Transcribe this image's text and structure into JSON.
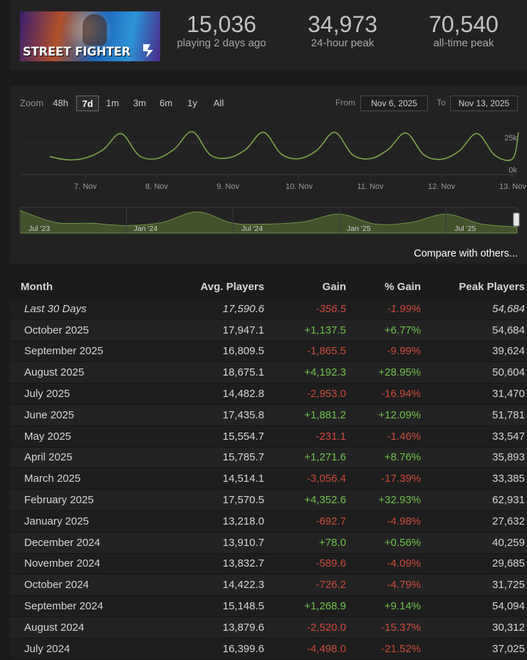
{
  "header": {
    "banner_logo": "STREET FIGHTER",
    "stats": [
      {
        "value": "15,036",
        "label": "playing 2 days ago"
      },
      {
        "value": "34,973",
        "label": "24-hour peak"
      },
      {
        "value": "70,540",
        "label": "all-time peak"
      }
    ]
  },
  "chart": {
    "zoom_label": "Zoom",
    "zoom_options": [
      "48h",
      "7d",
      "1m",
      "3m",
      "6m",
      "1y",
      "All"
    ],
    "active_zoom": "7d",
    "from_label": "From",
    "from_value": "Nov 6, 2025",
    "to_label": "To",
    "to_value": "Nov 13, 2025",
    "compare_label": "Compare with others..."
  },
  "chart_data": [
    {
      "type": "line",
      "x": [
        "6 Nov 12:00",
        "6 Nov 18:00",
        "7 Nov 00:00",
        "7 Nov 06:00",
        "7 Nov 12:00",
        "7 Nov 18:00",
        "8 Nov 00:00",
        "8 Nov 06:00",
        "8 Nov 12:00",
        "8 Nov 18:00",
        "9 Nov 00:00",
        "9 Nov 06:00",
        "9 Nov 12:00",
        "9 Nov 18:00",
        "10 Nov 00:00",
        "10 Nov 06:00",
        "10 Nov 12:00",
        "10 Nov 18:00",
        "11 Nov 00:00",
        "11 Nov 06:00",
        "11 Nov 12:00",
        "11 Nov 18:00",
        "12 Nov 00:00",
        "12 Nov 06:00",
        "12 Nov 12:00",
        "12 Nov 18:00",
        "13 Nov 00:00",
        "13 Nov 06:00"
      ],
      "values": [
        14000,
        11500,
        13000,
        19500,
        32000,
        15000,
        12500,
        20000,
        33500,
        15500,
        13000,
        19500,
        33000,
        16000,
        12500,
        19000,
        33000,
        15500,
        12500,
        19500,
        32500,
        15500,
        12000,
        18500,
        32000,
        15000,
        12500,
        33000
      ],
      "xticks": [
        "7. Nov",
        "8. Nov",
        "9. Nov",
        "10. Nov",
        "11. Nov",
        "12. Nov",
        "13. Nov"
      ],
      "ytick_labels": [
        "0k",
        "25k"
      ],
      "ylim": [
        0,
        40000
      ],
      "color": "#7ea64b",
      "grid": true
    },
    {
      "type": "area",
      "x": [
        "Jul '23",
        "Sep '23",
        "Nov '23",
        "Jan '24",
        "Mar '24",
        "May '24",
        "Jul '24",
        "Sep '24",
        "Nov '24",
        "Jan '25",
        "Mar '25",
        "May '25",
        "Jul '25",
        "Sep '25",
        "Nov '25"
      ],
      "values": [
        30000,
        14000,
        13000,
        10000,
        14000,
        28000,
        13000,
        12000,
        15000,
        25000,
        12000,
        14000,
        25000,
        12000,
        8000
      ],
      "xticks": [
        "Jul '23",
        "Jan '24",
        "Jul '24",
        "Jan '25",
        "Jul '25"
      ],
      "color": "#5f7a33"
    }
  ],
  "table": {
    "headers": [
      "Month",
      "Avg. Players",
      "Gain",
      "% Gain",
      "Peak Players"
    ],
    "rows": [
      {
        "month": "Last 30 Days",
        "avg": "17,590.6",
        "gain": "-356.5",
        "pct": "-1.99%",
        "peak": "54,684"
      },
      {
        "month": "October 2025",
        "avg": "17,947.1",
        "gain": "+1,137.5",
        "pct": "+6.77%",
        "peak": "54,684"
      },
      {
        "month": "September 2025",
        "avg": "16,809.5",
        "gain": "-1,865.5",
        "pct": "-9.99%",
        "peak": "39,624"
      },
      {
        "month": "August 2025",
        "avg": "18,675.1",
        "gain": "+4,192.3",
        "pct": "+28.95%",
        "peak": "50,604"
      },
      {
        "month": "July 2025",
        "avg": "14,482.8",
        "gain": "-2,953.0",
        "pct": "-16.94%",
        "peak": "31,470"
      },
      {
        "month": "June 2025",
        "avg": "17,435.8",
        "gain": "+1,881.2",
        "pct": "+12.09%",
        "peak": "51,781"
      },
      {
        "month": "May 2025",
        "avg": "15,554.7",
        "gain": "-231.1",
        "pct": "-1.46%",
        "peak": "33,547"
      },
      {
        "month": "April 2025",
        "avg": "15,785.7",
        "gain": "+1,271.6",
        "pct": "+8.76%",
        "peak": "35,893"
      },
      {
        "month": "March 2025",
        "avg": "14,514.1",
        "gain": "-3,056.4",
        "pct": "-17.39%",
        "peak": "33,385"
      },
      {
        "month": "February 2025",
        "avg": "17,570.5",
        "gain": "+4,352.6",
        "pct": "+32.93%",
        "peak": "62,931"
      },
      {
        "month": "January 2025",
        "avg": "13,218.0",
        "gain": "-692.7",
        "pct": "-4.98%",
        "peak": "27,632"
      },
      {
        "month": "December 2024",
        "avg": "13,910.7",
        "gain": "+78.0",
        "pct": "+0.56%",
        "peak": "40,259"
      },
      {
        "month": "November 2024",
        "avg": "13,832.7",
        "gain": "-589.6",
        "pct": "-4.09%",
        "peak": "29,685"
      },
      {
        "month": "October 2024",
        "avg": "14,422.3",
        "gain": "-726.2",
        "pct": "-4.79%",
        "peak": "31,725"
      },
      {
        "month": "September 2024",
        "avg": "15,148.5",
        "gain": "+1,268.9",
        "pct": "+9.14%",
        "peak": "54,094"
      },
      {
        "month": "August 2024",
        "avg": "13,879.6",
        "gain": "-2,520.0",
        "pct": "-15.37%",
        "peak": "30,312"
      },
      {
        "month": "July 2024",
        "avg": "16,399.6",
        "gain": "-4,498.0",
        "pct": "-21.52%",
        "peak": "37,025"
      }
    ]
  },
  "colors": {
    "positive": "#6fc24a",
    "negative": "#cd4a3c",
    "line": "#7ea64b",
    "area": "#5f7a33"
  }
}
